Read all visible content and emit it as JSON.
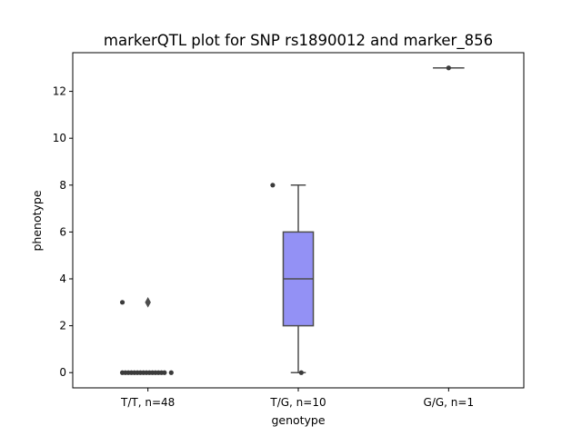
{
  "chart_data": {
    "type": "box",
    "title": "markerQTL plot for SNP rs1890012 and marker_856",
    "xlabel": "genotype",
    "ylabel": "phenotype",
    "ylim": [
      -0.65,
      13.65
    ],
    "yticks": [
      0,
      2,
      4,
      6,
      8,
      10,
      12
    ],
    "categories": [
      "T/T, n=48",
      "T/G, n=10",
      "G/G, n=1"
    ],
    "grid": false,
    "box_color": "#9391f5",
    "line_color": "#4d4d4d",
    "point_color": "#3b3b3b",
    "boxes": [
      {
        "category": "T/T, n=48",
        "q1": 0,
        "median": 0,
        "q3": 0,
        "whisker_low": 0,
        "whisker_high": 0,
        "fliers": [
          3
        ]
      },
      {
        "category": "T/G, n=10",
        "q1": 2,
        "median": 4,
        "q3": 6,
        "whisker_low": 0,
        "whisker_high": 8,
        "fliers": []
      },
      {
        "category": "G/G, n=1",
        "q1": 13,
        "median": 13,
        "q3": 13,
        "whisker_low": 13,
        "whisker_high": 13,
        "fliers": []
      }
    ],
    "points": [
      {
        "category": "T/T, n=48",
        "y": 3,
        "offset": -0.17
      },
      {
        "category": "T/T, n=48",
        "y": 0,
        "offset": -0.17
      },
      {
        "category": "T/T, n=48",
        "y": 0,
        "offset": -0.15
      },
      {
        "category": "T/T, n=48",
        "y": 0,
        "offset": -0.13
      },
      {
        "category": "T/T, n=48",
        "y": 0,
        "offset": -0.11
      },
      {
        "category": "T/T, n=48",
        "y": 0,
        "offset": -0.09
      },
      {
        "category": "T/T, n=48",
        "y": 0,
        "offset": -0.07
      },
      {
        "category": "T/T, n=48",
        "y": 0,
        "offset": -0.05
      },
      {
        "category": "T/T, n=48",
        "y": 0,
        "offset": -0.03
      },
      {
        "category": "T/T, n=48",
        "y": 0,
        "offset": -0.01
      },
      {
        "category": "T/T, n=48",
        "y": 0,
        "offset": 0.01
      },
      {
        "category": "T/T, n=48",
        "y": 0,
        "offset": 0.03
      },
      {
        "category": "T/T, n=48",
        "y": 0,
        "offset": 0.05
      },
      {
        "category": "T/T, n=48",
        "y": 0,
        "offset": 0.07
      },
      {
        "category": "T/T, n=48",
        "y": 0,
        "offset": 0.09
      },
      {
        "category": "T/T, n=48",
        "y": 0,
        "offset": 0.11
      },
      {
        "category": "T/T, n=48",
        "y": 0,
        "offset": 0.155
      },
      {
        "category": "T/G, n=10",
        "y": 8,
        "offset": -0.17
      },
      {
        "category": "T/G, n=10",
        "y": 0,
        "offset": 0.02
      },
      {
        "category": "G/G, n=1",
        "y": 13,
        "offset": 0.0
      }
    ]
  }
}
